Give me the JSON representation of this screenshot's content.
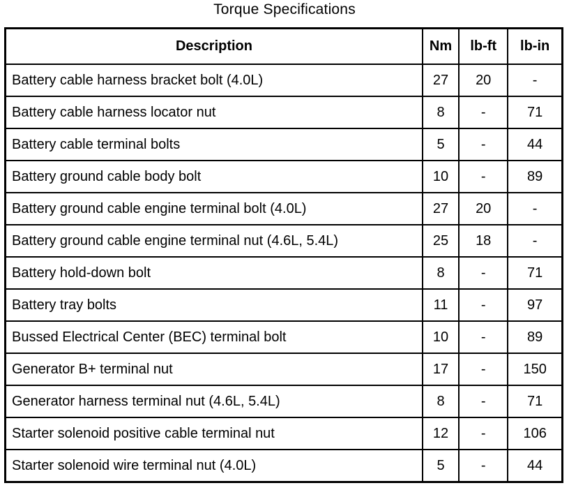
{
  "title": "Torque Specifications",
  "table": {
    "columns": [
      {
        "key": "description",
        "label": "Description"
      },
      {
        "key": "nm",
        "label": "Nm"
      },
      {
        "key": "lbft",
        "label": "lb-ft"
      },
      {
        "key": "lbin",
        "label": "lb-in"
      }
    ],
    "rows": [
      {
        "description": "Battery cable harness bracket bolt (4.0L)",
        "nm": "27",
        "lbft": "20",
        "lbin": "-"
      },
      {
        "description": "Battery cable harness locator nut",
        "nm": "8",
        "lbft": "-",
        "lbin": "71"
      },
      {
        "description": "Battery cable terminal bolts",
        "nm": "5",
        "lbft": "-",
        "lbin": "44"
      },
      {
        "description": "Battery ground cable body bolt",
        "nm": "10",
        "lbft": "-",
        "lbin": "89"
      },
      {
        "description": "Battery ground cable engine terminal bolt (4.0L)",
        "nm": "27",
        "lbft": "20",
        "lbin": "-"
      },
      {
        "description": "Battery ground cable engine terminal nut (4.6L, 5.4L)",
        "nm": "25",
        "lbft": "18",
        "lbin": "-"
      },
      {
        "description": "Battery hold-down bolt",
        "nm": "8",
        "lbft": "-",
        "lbin": "71"
      },
      {
        "description": "Battery tray bolts",
        "nm": "11",
        "lbft": "-",
        "lbin": "97"
      },
      {
        "description": "Bussed Electrical Center (BEC) terminal bolt",
        "nm": "10",
        "lbft": "-",
        "lbin": "89"
      },
      {
        "description": "Generator B+ terminal nut",
        "nm": "17",
        "lbft": "-",
        "lbin": "150"
      },
      {
        "description": "Generator harness terminal nut (4.6L, 5.4L)",
        "nm": "8",
        "lbft": "-",
        "lbin": "71"
      },
      {
        "description": "Starter solenoid positive cable terminal nut",
        "nm": "12",
        "lbft": "-",
        "lbin": "106"
      },
      {
        "description": "Starter solenoid wire terminal nut (4.0L)",
        "nm": "5",
        "lbft": "-",
        "lbin": "44"
      }
    ]
  }
}
